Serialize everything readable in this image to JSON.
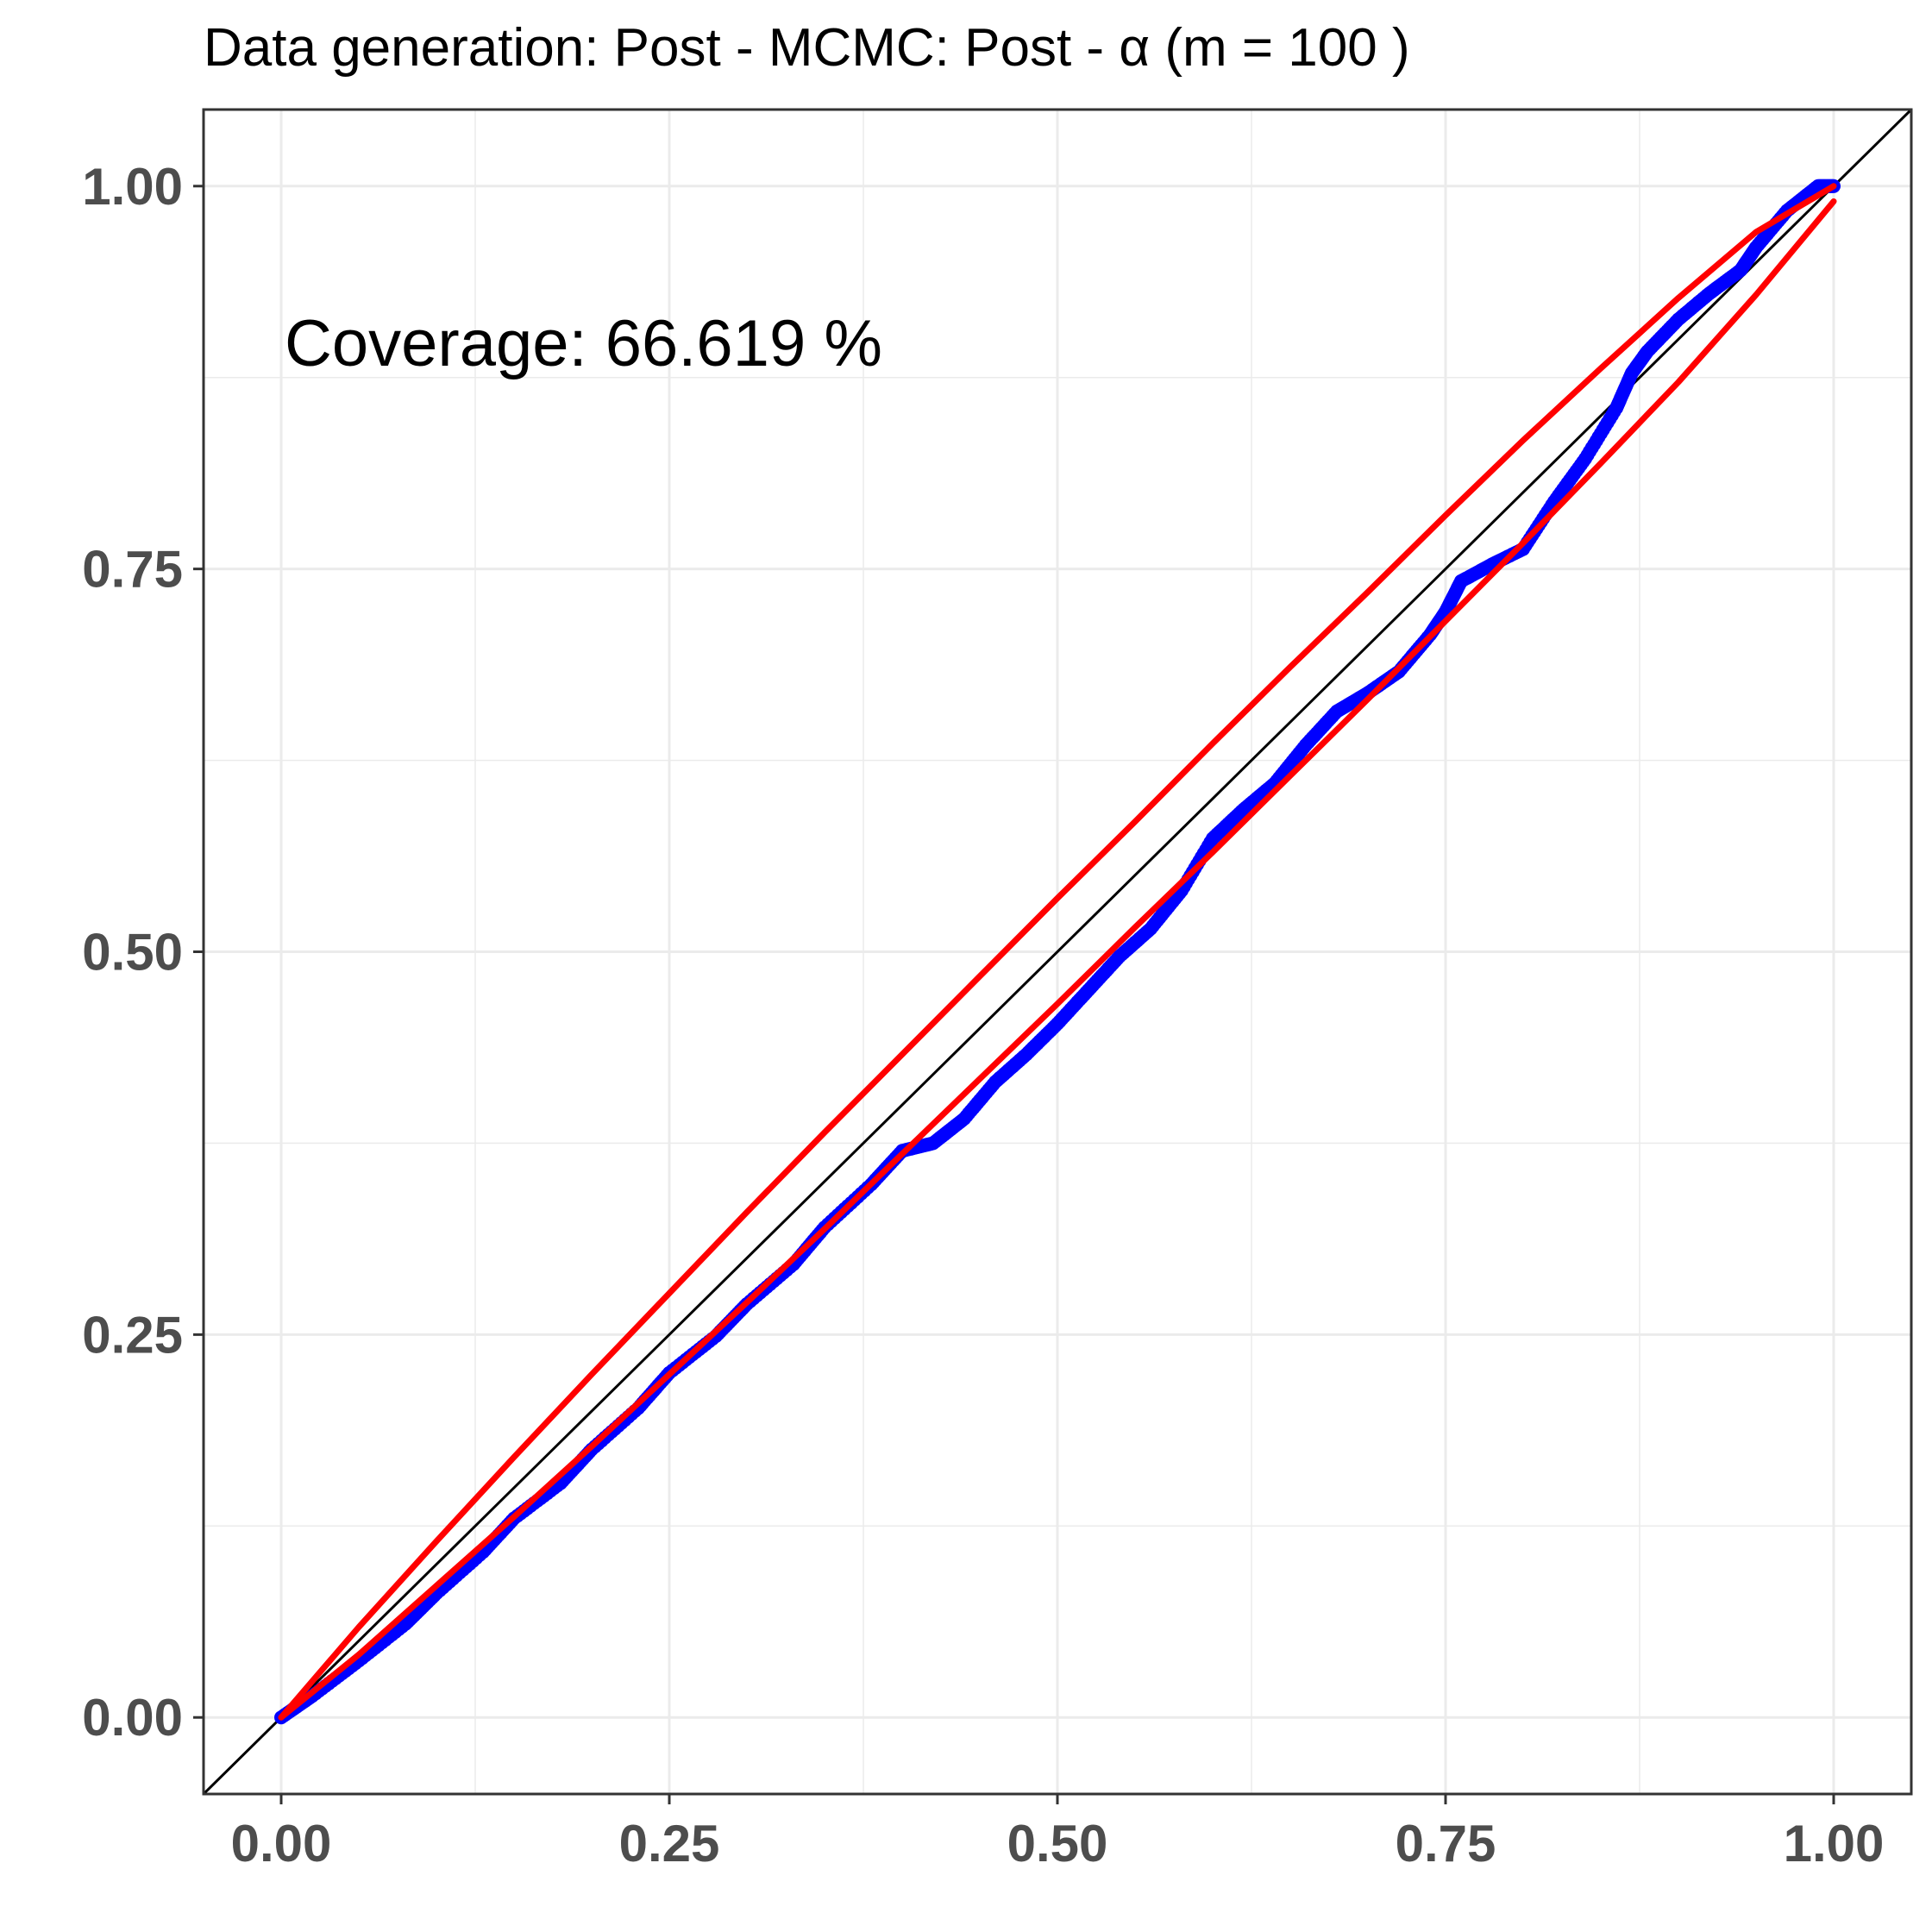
{
  "chart_data": {
    "type": "line",
    "title": "Data generation:  Post - MCMC:  Post  -  α  (m =  100 )",
    "xlabel": "",
    "ylabel": "",
    "xlim": [
      -0.05,
      1.05
    ],
    "ylim": [
      -0.05,
      1.05
    ],
    "x_ticks": [
      0.0,
      0.25,
      0.5,
      0.75,
      1.0
    ],
    "y_ticks": [
      0.0,
      0.25,
      0.5,
      0.75,
      1.0
    ],
    "x_tick_labels": [
      "0.00",
      "0.25",
      "0.50",
      "0.75",
      "1.00"
    ],
    "y_tick_labels": [
      "0.00",
      "0.25",
      "0.50",
      "0.75",
      "1.00"
    ],
    "grid": true,
    "legend": "none",
    "annotation": "Coverage:  66.619 %",
    "colors": {
      "points": "#0000ff",
      "band": "#ff0000",
      "reference": "#000000",
      "grid": "#ebebeb"
    },
    "reference_line": {
      "slope": 1,
      "intercept": 0
    },
    "series": [
      {
        "kind": "band_upper",
        "x": [
          0.0,
          0.05,
          0.1,
          0.15,
          0.2,
          0.25,
          0.3,
          0.35,
          0.4,
          0.45,
          0.5,
          0.55,
          0.6,
          0.65,
          0.7,
          0.75,
          0.8,
          0.85,
          0.9,
          0.95,
          1.0
        ],
        "y": [
          0.0,
          0.059,
          0.115,
          0.17,
          0.224,
          0.277,
          0.33,
          0.382,
          0.433,
          0.484,
          0.535,
          0.585,
          0.636,
          0.686,
          0.735,
          0.785,
          0.834,
          0.881,
          0.927,
          0.97,
          1.0
        ]
      },
      {
        "kind": "band_lower",
        "x": [
          0.0,
          0.05,
          0.1,
          0.15,
          0.2,
          0.25,
          0.3,
          0.35,
          0.4,
          0.45,
          0.5,
          0.55,
          0.6,
          0.65,
          0.7,
          0.75,
          0.8,
          0.85,
          0.9,
          0.95,
          1.0
        ],
        "y": [
          0.0,
          0.041,
          0.086,
          0.131,
          0.177,
          0.224,
          0.271,
          0.319,
          0.368,
          0.417,
          0.466,
          0.516,
          0.565,
          0.615,
          0.665,
          0.716,
          0.767,
          0.819,
          0.872,
          0.929,
          0.99
        ]
      },
      {
        "kind": "points",
        "x": [
          0.0,
          0.02,
          0.05,
          0.08,
          0.1,
          0.13,
          0.15,
          0.18,
          0.2,
          0.23,
          0.25,
          0.28,
          0.3,
          0.33,
          0.35,
          0.38,
          0.4,
          0.42,
          0.44,
          0.46,
          0.48,
          0.5,
          0.52,
          0.54,
          0.56,
          0.58,
          0.6,
          0.62,
          0.64,
          0.66,
          0.68,
          0.7,
          0.72,
          0.74,
          0.75,
          0.76,
          0.78,
          0.8,
          0.82,
          0.84,
          0.86,
          0.87,
          0.88,
          0.9,
          0.92,
          0.94,
          0.95,
          0.97,
          0.99,
          1.0
        ],
        "y": [
          0.0,
          0.014,
          0.037,
          0.061,
          0.081,
          0.108,
          0.13,
          0.153,
          0.175,
          0.202,
          0.225,
          0.249,
          0.27,
          0.296,
          0.32,
          0.348,
          0.37,
          0.375,
          0.391,
          0.415,
          0.433,
          0.453,
          0.475,
          0.497,
          0.515,
          0.54,
          0.574,
          0.593,
          0.61,
          0.635,
          0.657,
          0.669,
          0.683,
          0.707,
          0.722,
          0.742,
          0.753,
          0.763,
          0.794,
          0.822,
          0.855,
          0.878,
          0.892,
          0.913,
          0.93,
          0.945,
          0.96,
          0.984,
          1.0,
          1.0
        ]
      }
    ]
  }
}
